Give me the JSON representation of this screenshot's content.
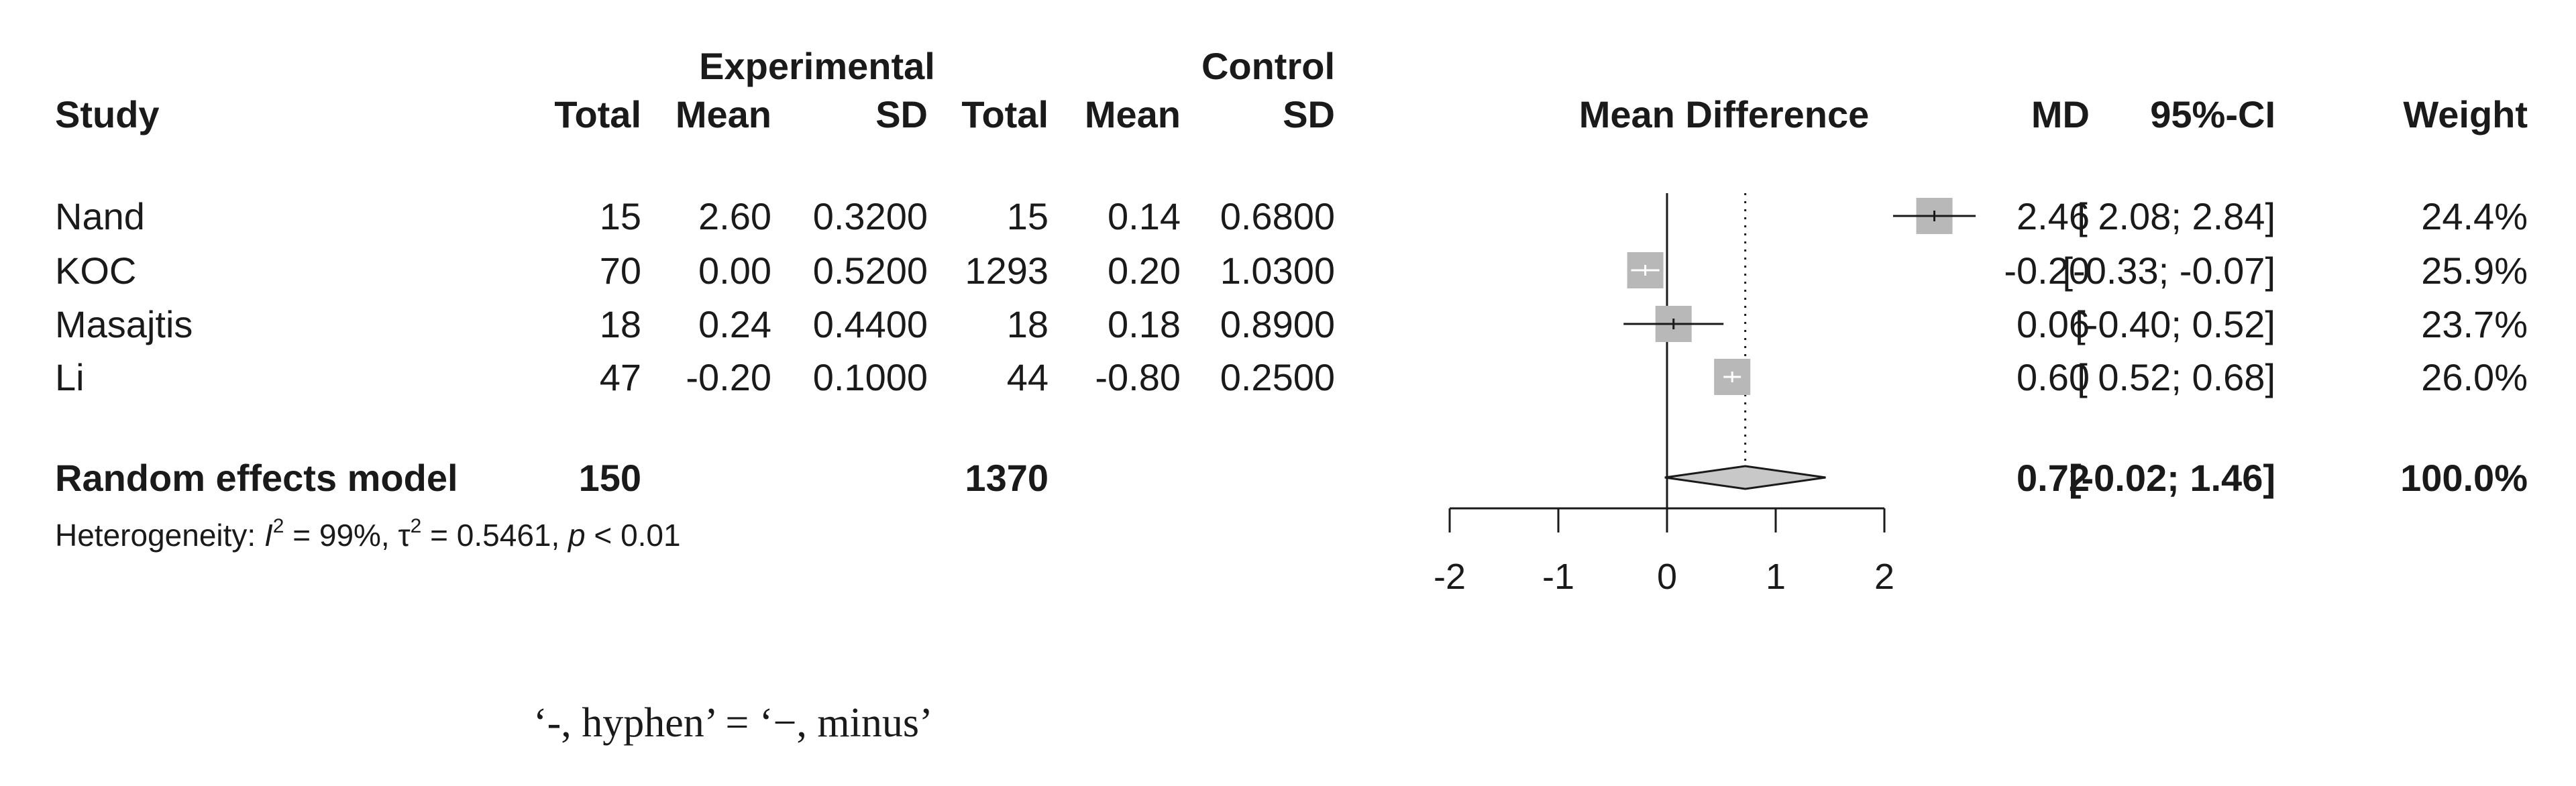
{
  "chart_data": {
    "type": "forest",
    "columns": {
      "study": "Study",
      "experimental_group": "Experimental",
      "control_group": "Control",
      "total": "Total",
      "mean": "Mean",
      "sd": "SD",
      "plot_header": "Mean Difference",
      "md": "MD",
      "ci": "95%-CI",
      "weight": "Weight"
    },
    "studies": [
      {
        "name": "Nand",
        "exp_total": "15",
        "exp_mean": "2.60",
        "exp_sd": "0.3200",
        "ctl_total": "15",
        "ctl_mean": "0.14",
        "ctl_sd": "0.6800",
        "md_label": "2.46",
        "ci_label": "[ 2.08; 2.84]",
        "weight_label": "24.4%",
        "md": 2.46,
        "ci": [
          2.08,
          2.84
        ],
        "weight": 24.4
      },
      {
        "name": "KOC",
        "exp_total": "70",
        "exp_mean": "0.00",
        "exp_sd": "0.5200",
        "ctl_total": "1293",
        "ctl_mean": "0.20",
        "ctl_sd": "1.0300",
        "md_label": "-0.20",
        "ci_label": "[-0.33; -0.07]",
        "weight_label": "25.9%",
        "md": -0.2,
        "ci": [
          -0.33,
          -0.07
        ],
        "weight": 25.9
      },
      {
        "name": "Masajtis",
        "exp_total": "18",
        "exp_mean": "0.24",
        "exp_sd": "0.4400",
        "ctl_total": "18",
        "ctl_mean": "0.18",
        "ctl_sd": "0.8900",
        "md_label": "0.06",
        "ci_label": "[-0.40; 0.52]",
        "weight_label": "23.7%",
        "md": 0.06,
        "ci": [
          -0.4,
          0.52
        ],
        "weight": 23.7
      },
      {
        "name": "Li",
        "exp_total": "47",
        "exp_mean": "-0.20",
        "exp_sd": "0.1000",
        "ctl_total": "44",
        "ctl_mean": "-0.80",
        "ctl_sd": "0.2500",
        "md_label": "0.60",
        "ci_label": "[ 0.52; 0.68]",
        "weight_label": "26.0%",
        "md": 0.6,
        "ci": [
          0.52,
          0.68
        ],
        "weight": 26.0
      }
    ],
    "pooled": {
      "name": "Random effects model",
      "exp_total": "150",
      "ctl_total": "1370",
      "md_label": "0.72",
      "ci_label": "[-0.02; 1.46]",
      "weight_label": "100.0%",
      "md": 0.72,
      "ci": [
        -0.02,
        1.46
      ]
    },
    "heterogeneity": {
      "prefix": "Heterogeneity: ",
      "i2_symbol": "I",
      "i2_value": " = 99%, ",
      "tau2_symbol": "τ",
      "tau2_value": " = 0.5461, ",
      "p_symbol": "p",
      "p_value": " < 0.01",
      "superscript": "2"
    },
    "x_axis": {
      "range": [
        -2,
        2
      ],
      "ticks": [
        -2,
        -1,
        0,
        1,
        2
      ],
      "tick_labels": [
        "-2",
        "-1",
        "0",
        "1",
        "2"
      ],
      "reference_line": 0,
      "pooled_line": 0.72
    },
    "colors": {
      "square": "#b8b8b8",
      "diamond": "#c8c8c8",
      "line": "#1a1a1a",
      "ci_inside_square": "#ffffff"
    }
  },
  "caption": "‘-, hyphen’ = ‘−, minus’"
}
